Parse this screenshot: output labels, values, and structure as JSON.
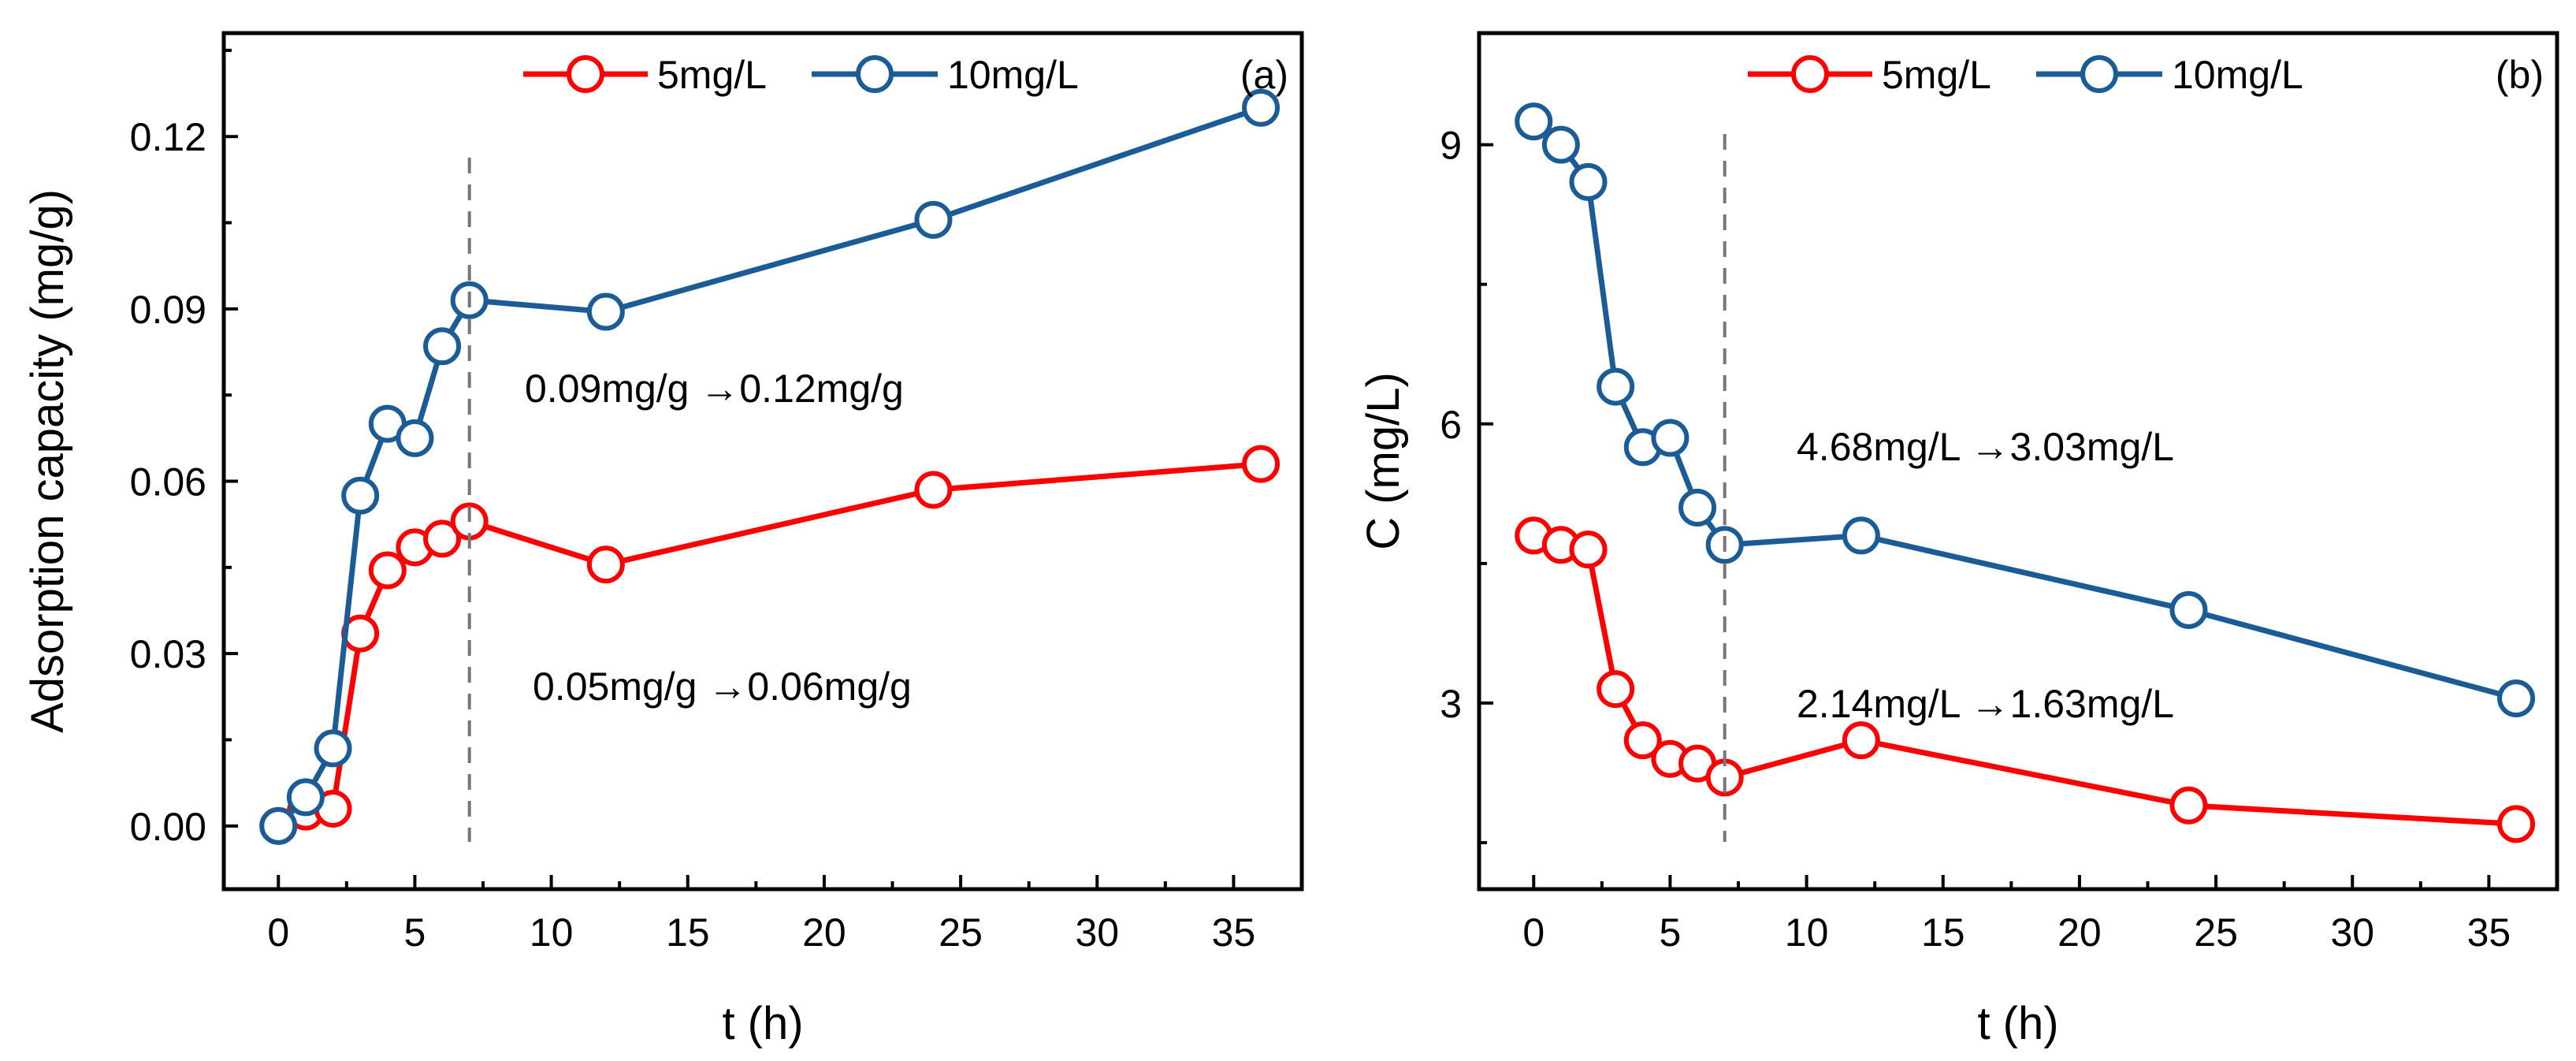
{
  "chart_data": [
    {
      "type": "line",
      "panel": "(a)",
      "xlabel": "t (h)",
      "ylabel": "Adsorption capacity (mg/g)",
      "xlim": [
        -2,
        37.5
      ],
      "ylim": [
        -0.011,
        0.138
      ],
      "xticks": [
        0,
        5,
        10,
        15,
        20,
        25,
        30,
        35
      ],
      "xtick_labels": [
        "0",
        "5",
        "10",
        "15",
        "20",
        "25",
        "30",
        "35"
      ],
      "yticks": [
        0,
        0.03,
        0.06,
        0.09,
        0.12
      ],
      "ytick_labels": [
        "0.00",
        "0.03",
        "0.06",
        "0.09",
        "0.12"
      ],
      "x": [
        0,
        1,
        2,
        3,
        4,
        5,
        6,
        7,
        12,
        24,
        36
      ],
      "series": [
        {
          "name": "5mg/L",
          "color": "#ff0000",
          "values": [
            0,
            0.0025,
            0.003,
            0.0335,
            0.0445,
            0.0485,
            0.05,
            0.053,
            0.0455,
            0.0585,
            0.063
          ]
        },
        {
          "name": "10mg/L",
          "color": "#1c5c96",
          "values": [
            0,
            0.005,
            0.0135,
            0.0575,
            0.07,
            0.0675,
            0.0835,
            0.0915,
            0.0895,
            0.1055,
            0.125
          ]
        }
      ],
      "vline_x": 7,
      "annotations": [
        "0.09mg/g →0.12mg/g",
        "0.05mg/g →0.06mg/g"
      ],
      "legend": "top"
    },
    {
      "type": "line",
      "panel": "(b)",
      "xlabel": "t (h)",
      "ylabel": "C (mg/L)",
      "xlim": [
        -2,
        37.5
      ],
      "ylim": [
        1,
        10.2
      ],
      "xticks": [
        0,
        5,
        10,
        15,
        20,
        25,
        30,
        35
      ],
      "xtick_labels": [
        "0",
        "5",
        "10",
        "15",
        "20",
        "25",
        "30",
        "35"
      ],
      "yticks": [
        3,
        6,
        9
      ],
      "ytick_labels": [
        "3",
        "6",
        "9"
      ],
      "x": [
        0,
        1,
        2,
        3,
        4,
        5,
        6,
        7,
        12,
        24,
        36
      ],
      "series": [
        {
          "name": "5mg/L",
          "color": "#ff0000",
          "values": [
            4.8,
            4.7,
            4.65,
            3.15,
            2.6,
            2.4,
            2.35,
            2.2,
            2.6,
            1.9,
            1.7
          ]
        },
        {
          "name": "10mg/L",
          "color": "#1c5c96",
          "values": [
            9.25,
            9.0,
            8.6,
            6.4,
            5.75,
            5.85,
            5.1,
            4.7,
            4.8,
            4.0,
            3.05
          ]
        }
      ],
      "vline_x": 7,
      "annotations": [
        "4.68mg/L →3.03mg/L",
        "2.14mg/L →1.63mg/L"
      ],
      "legend": "top"
    }
  ]
}
